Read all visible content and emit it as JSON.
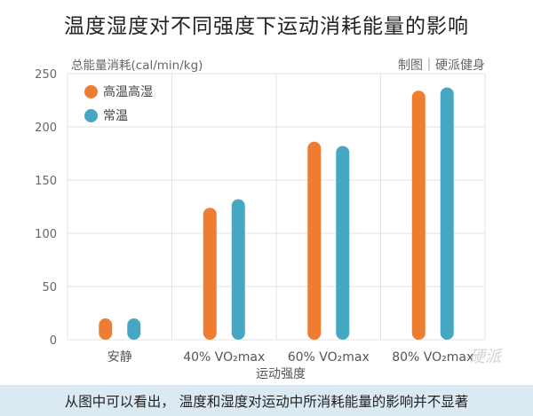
{
  "title": "温度湿度对不同强度下运动消耗能量的影响",
  "credit": "制图｜硬派健身",
  "footer": "从图中可以看出， 温度和湿度对运动中所消耗能量的影响并不显著",
  "watermark": "硬派",
  "colors": {
    "hot": "#ee7d31",
    "normal": "#45a7c1",
    "grid": "#e3e3e3",
    "footer_bg": "#dbe9f3"
  },
  "chart_data": {
    "type": "bar",
    "categories": [
      "安静",
      "40% VO₂max",
      "60% VO₂max",
      "80% VO₂max"
    ],
    "series": [
      {
        "name": "高温高湿",
        "values": [
          20,
          124,
          186,
          234
        ]
      },
      {
        "name": "常温",
        "values": [
          20,
          132,
          182,
          237
        ]
      }
    ],
    "ylabel": "总能量消耗(cal/min/kg)",
    "xlabel": "运动强度",
    "ylim": [
      0,
      250
    ],
    "yticks": [
      0,
      50,
      100,
      150,
      200,
      250
    ],
    "legend": "top-left",
    "grid": true
  }
}
